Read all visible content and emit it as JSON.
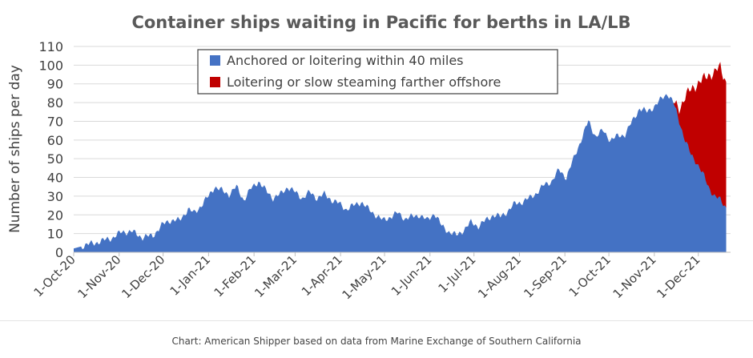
{
  "caption": "Chart: American Shipper based on data from Marine Exchange of Southern California",
  "chart_data": {
    "type": "area",
    "title": "Container ships waiting in Pacific for berths in LA/LB",
    "ylabel": "Number of ships per day",
    "xlabel": "",
    "ylim": [
      0,
      110
    ],
    "yticks": [
      0,
      10,
      20,
      30,
      40,
      50,
      60,
      70,
      80,
      90,
      100,
      110
    ],
    "grid": true,
    "legend": "top-center",
    "colors": {
      "anchored": "#4472c4",
      "offshore": "#c00000"
    },
    "x_ticks": [
      "1-Oct-20",
      "1-Nov-20",
      "1-Dec-20",
      "1-Jan-21",
      "1-Feb-21",
      "1-Mar-21",
      "1-Apr-21",
      "1-May-21",
      "1-Jun-21",
      "1-Jul-21",
      "1-Aug-21",
      "1-Sep-21",
      "1-Oct-21",
      "1-Nov-21",
      "1-Dec-21"
    ],
    "series": [
      {
        "name": "Anchored or loitering within 40 miles",
        "x": [
          "2020-10-01",
          "2020-10-10",
          "2020-10-20",
          "2020-10-28",
          "2020-11-03",
          "2020-11-10",
          "2020-11-17",
          "2020-11-24",
          "2020-12-01",
          "2020-12-05",
          "2020-12-12",
          "2020-12-18",
          "2020-12-22",
          "2020-12-27",
          "2021-01-01",
          "2021-01-05",
          "2021-01-10",
          "2021-01-15",
          "2021-01-20",
          "2021-01-25",
          "2021-01-30",
          "2021-02-04",
          "2021-02-09",
          "2021-02-14",
          "2021-02-19",
          "2021-02-24",
          "2021-03-01",
          "2021-03-06",
          "2021-03-11",
          "2021-03-16",
          "2021-03-21",
          "2021-03-26",
          "2021-03-31",
          "2021-04-05",
          "2021-04-10",
          "2021-04-15",
          "2021-04-20",
          "2021-04-25",
          "2021-04-30",
          "2021-05-05",
          "2021-05-10",
          "2021-05-15",
          "2021-05-20",
          "2021-05-25",
          "2021-05-30",
          "2021-06-04",
          "2021-06-09",
          "2021-06-14",
          "2021-06-19",
          "2021-06-24",
          "2021-06-29",
          "2021-07-04",
          "2021-07-09",
          "2021-07-14",
          "2021-07-19",
          "2021-07-24",
          "2021-07-29",
          "2021-08-03",
          "2021-08-08",
          "2021-08-13",
          "2021-08-18",
          "2021-08-23",
          "2021-08-28",
          "2021-09-02",
          "2021-09-07",
          "2021-09-12",
          "2021-09-17",
          "2021-09-22",
          "2021-09-27",
          "2021-10-02",
          "2021-10-07",
          "2021-10-12",
          "2021-10-17",
          "2021-10-22",
          "2021-10-27",
          "2021-11-01",
          "2021-11-06",
          "2021-11-10",
          "2021-11-14",
          "2021-11-18",
          "2021-11-22",
          "2021-11-26",
          "2021-11-30",
          "2021-12-04",
          "2021-12-08",
          "2021-12-12",
          "2021-12-16",
          "2021-12-20"
        ],
        "values": [
          2,
          4,
          6,
          8,
          11,
          11,
          8,
          9,
          15,
          17,
          17,
          23,
          21,
          25,
          30,
          35,
          33,
          31,
          35,
          28,
          34,
          38,
          33,
          29,
          31,
          35,
          32,
          29,
          32,
          29,
          31,
          28,
          26,
          23,
          25,
          27,
          23,
          20,
          17,
          19,
          21,
          18,
          19,
          20,
          17,
          21,
          14,
          11,
          9,
          12,
          16,
          14,
          17,
          20,
          19,
          22,
          26,
          27,
          29,
          32,
          36,
          38,
          44,
          40,
          50,
          60,
          70,
          62,
          65,
          60,
          62,
          63,
          70,
          77,
          75,
          78,
          82,
          85,
          80,
          70,
          60,
          52,
          48,
          42,
          35,
          30,
          28,
          24
        ]
      },
      {
        "name": "Loitering or slow steaming farther offshore",
        "x": [
          "2021-11-14",
          "2021-11-18",
          "2021-11-22",
          "2021-11-26",
          "2021-11-30",
          "2021-12-04",
          "2021-12-08",
          "2021-12-12",
          "2021-12-16",
          "2021-12-20"
        ],
        "values": [
          0,
          7,
          23,
          35,
          42,
          50,
          60,
          66,
          71,
          67
        ]
      }
    ]
  }
}
